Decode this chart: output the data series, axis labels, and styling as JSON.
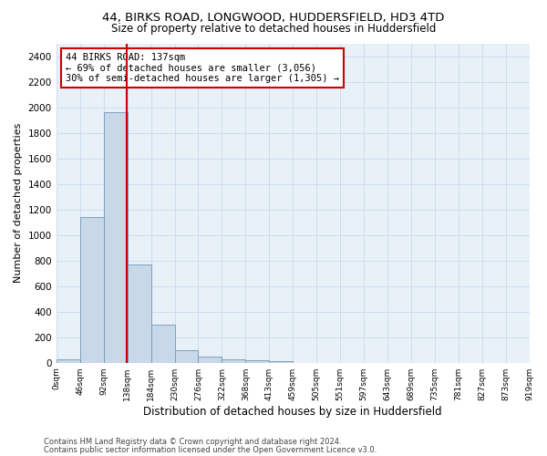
{
  "title_line1": "44, BIRKS ROAD, LONGWOOD, HUDDERSFIELD, HD3 4TD",
  "title_line2": "Size of property relative to detached houses in Huddersfield",
  "xlabel": "Distribution of detached houses by size in Huddersfield",
  "ylabel": "Number of detached properties",
  "bar_values": [
    30,
    1140,
    1960,
    770,
    300,
    100,
    45,
    30,
    20,
    15,
    0,
    0,
    0,
    0,
    0,
    0,
    0,
    0,
    0,
    0
  ],
  "bin_edges": [
    0,
    46,
    92,
    138,
    184,
    230,
    276,
    322,
    368,
    413,
    459,
    505,
    551,
    597,
    643,
    689,
    735,
    781,
    827,
    873,
    919
  ],
  "tick_labels": [
    "0sqm",
    "46sqm",
    "92sqm",
    "138sqm",
    "184sqm",
    "230sqm",
    "276sqm",
    "322sqm",
    "368sqm",
    "413sqm",
    "459sqm",
    "505sqm",
    "551sqm",
    "597sqm",
    "643sqm",
    "689sqm",
    "735sqm",
    "781sqm",
    "827sqm",
    "873sqm",
    "919sqm"
  ],
  "bar_color": "#c8d8e8",
  "bar_edge_color": "#7098b8",
  "vline_x": 137,
  "vline_color": "#cc0000",
  "annotation_text": "44 BIRKS ROAD: 137sqm\n← 69% of detached houses are smaller (3,056)\n30% of semi-detached houses are larger (1,305) →",
  "annotation_box_color": "#cc0000",
  "ylim": [
    0,
    2500
  ],
  "yticks": [
    0,
    200,
    400,
    600,
    800,
    1000,
    1200,
    1400,
    1600,
    1800,
    2000,
    2200,
    2400
  ],
  "grid_color": "#ccddee",
  "bg_color": "#e8f0f8",
  "footer_line1": "Contains HM Land Registry data © Crown copyright and database right 2024.",
  "footer_line2": "Contains public sector information licensed under the Open Government Licence v3.0."
}
